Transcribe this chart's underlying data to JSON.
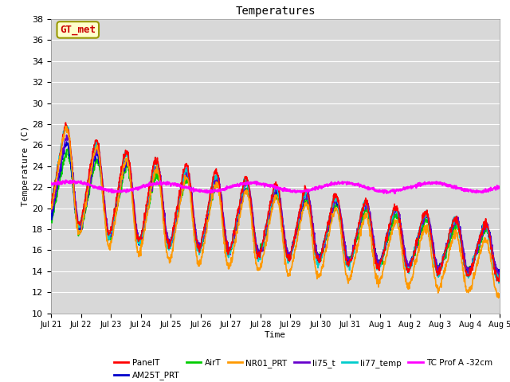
{
  "title": "Temperatures",
  "xlabel": "Time",
  "ylabel": "Temperature (C)",
  "ylim": [
    10,
    38
  ],
  "yticks": [
    10,
    12,
    14,
    16,
    18,
    20,
    22,
    24,
    26,
    28,
    30,
    32,
    34,
    36,
    38
  ],
  "bg_color": "#d8d8d8",
  "grid_color": "#ffffff",
  "annotation_text": "GT_met",
  "annotation_bg": "#ffffcc",
  "annotation_border": "#999900",
  "annotation_text_color": "#cc0000",
  "series_colors": {
    "PanelT": "#ff0000",
    "AM25T_PRT": "#0000cc",
    "AirT": "#00cc00",
    "NR01_PRT": "#ff9900",
    "li75_t": "#6600cc",
    "li77_temp": "#00cccc",
    "TC Prof A -32cm": "#ff00ff"
  },
  "n_points": 1440,
  "n_days": 15
}
